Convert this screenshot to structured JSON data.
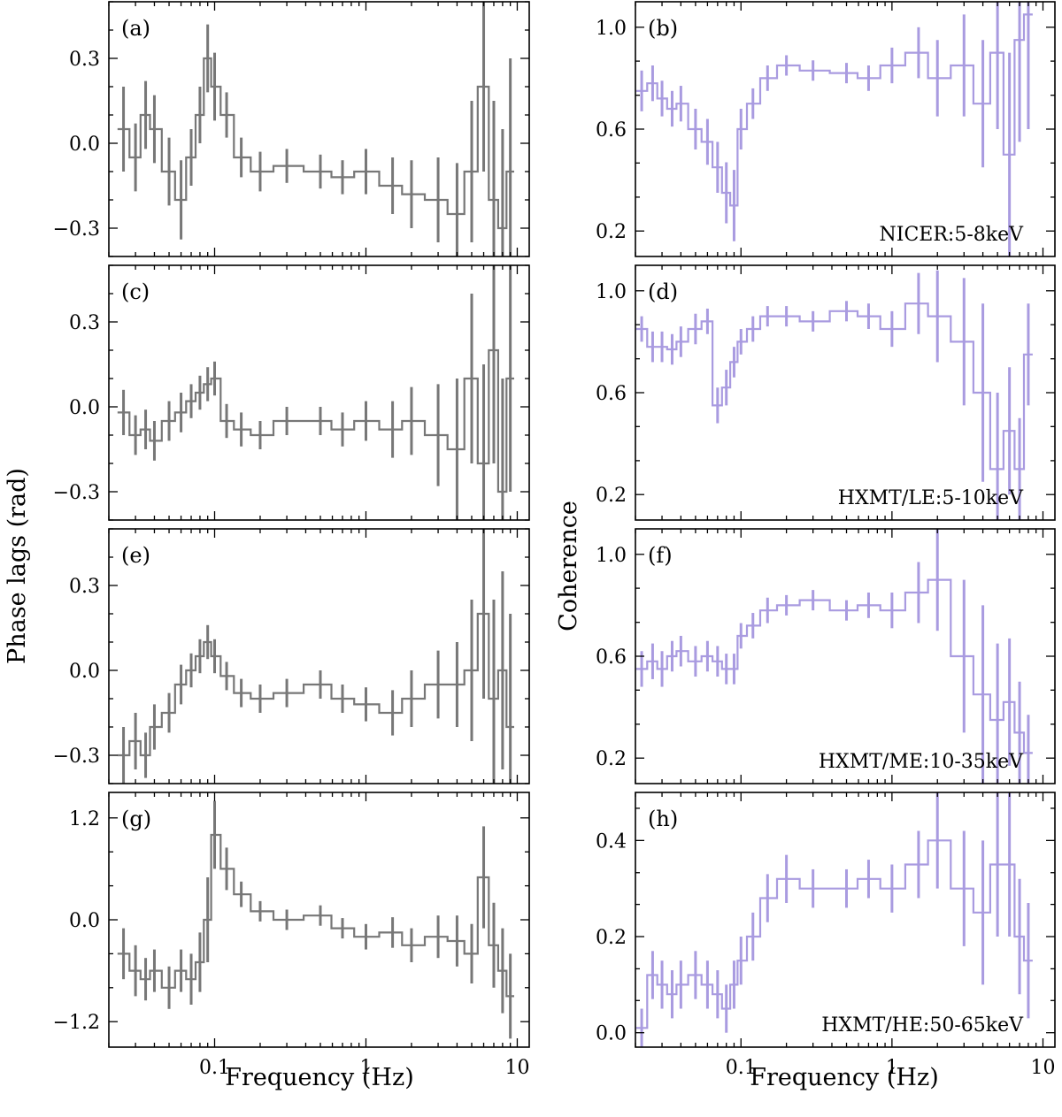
{
  "figure": {
    "left_ylabel": "Phase lags (rad)",
    "right_ylabel": "Coherence",
    "xlabel": "Frequency (Hz)",
    "x_tick_labels": [
      "0.1",
      "1",
      "10"
    ]
  },
  "colors": {
    "lag_series": "#777777",
    "coherence_series": "#a99be0",
    "axes": "#000000"
  },
  "chart_data": [
    {
      "type": "line",
      "panel": "(a)",
      "ylabel": "Phase lags (rad)",
      "xscale": "log",
      "xlim": [
        0.02,
        12
      ],
      "ylim": [
        -0.4,
        0.5
      ],
      "yticks": [
        -0.3,
        0.0,
        0.3
      ],
      "ytick_labels": [
        "−0.3",
        "0.0",
        "0.3"
      ],
      "x": [
        0.025,
        0.03,
        0.035,
        0.04,
        0.05,
        0.06,
        0.07,
        0.08,
        0.09,
        0.1,
        0.12,
        0.15,
        0.2,
        0.3,
        0.5,
        0.7,
        1.0,
        1.5,
        2.0,
        3.0,
        4.0,
        5.0,
        6.0,
        7.0,
        8.0,
        9.0
      ],
      "y": [
        0.05,
        -0.05,
        0.1,
        0.05,
        -0.1,
        -0.2,
        -0.05,
        0.1,
        0.3,
        0.2,
        0.1,
        -0.05,
        -0.1,
        -0.08,
        -0.1,
        -0.12,
        -0.1,
        -0.15,
        -0.18,
        -0.2,
        -0.25,
        -0.1,
        0.2,
        -0.2,
        -0.3,
        -0.1
      ],
      "yerr": [
        0.15,
        0.12,
        0.12,
        0.12,
        0.12,
        0.14,
        0.1,
        0.1,
        0.12,
        0.12,
        0.08,
        0.07,
        0.07,
        0.06,
        0.06,
        0.06,
        0.08,
        0.1,
        0.12,
        0.15,
        0.18,
        0.25,
        0.3,
        0.35,
        0.35,
        0.4
      ],
      "annotation": ""
    },
    {
      "type": "line",
      "panel": "(b)",
      "ylabel": "Coherence",
      "xscale": "log",
      "xlim": [
        0.02,
        12
      ],
      "ylim": [
        0.1,
        1.1
      ],
      "yticks": [
        0.2,
        0.6,
        1.0
      ],
      "ytick_labels": [
        "0.2",
        "0.6",
        "1.0"
      ],
      "x": [
        0.022,
        0.026,
        0.03,
        0.035,
        0.04,
        0.05,
        0.06,
        0.07,
        0.08,
        0.09,
        0.1,
        0.12,
        0.15,
        0.2,
        0.3,
        0.5,
        0.7,
        1.0,
        1.5,
        2.0,
        3.0,
        4.0,
        5.0,
        6.0,
        7.0,
        8.0
      ],
      "y": [
        0.75,
        0.78,
        0.72,
        0.68,
        0.7,
        0.6,
        0.55,
        0.45,
        0.35,
        0.3,
        0.6,
        0.7,
        0.8,
        0.85,
        0.83,
        0.82,
        0.8,
        0.85,
        0.9,
        0.8,
        0.85,
        0.7,
        0.9,
        0.5,
        0.95,
        1.05
      ],
      "yerr": [
        0.08,
        0.07,
        0.07,
        0.07,
        0.07,
        0.08,
        0.09,
        0.1,
        0.12,
        0.14,
        0.08,
        0.06,
        0.05,
        0.04,
        0.04,
        0.04,
        0.05,
        0.07,
        0.1,
        0.15,
        0.2,
        0.25,
        0.3,
        0.4,
        0.4,
        0.45
      ],
      "annotation": "NICER:5-8keV"
    },
    {
      "type": "line",
      "panel": "(c)",
      "ylabel": "Phase lags (rad)",
      "xscale": "log",
      "xlim": [
        0.02,
        12
      ],
      "ylim": [
        -0.4,
        0.5
      ],
      "yticks": [
        -0.3,
        0.0,
        0.3
      ],
      "ytick_labels": [
        "−0.3",
        "0.0",
        "0.3"
      ],
      "x": [
        0.025,
        0.03,
        0.035,
        0.04,
        0.05,
        0.06,
        0.07,
        0.08,
        0.09,
        0.1,
        0.12,
        0.15,
        0.2,
        0.3,
        0.5,
        0.7,
        1.0,
        1.5,
        2.0,
        3.0,
        4.0,
        5.0,
        6.0,
        7.0,
        8.0,
        9.0
      ],
      "y": [
        -0.02,
        -0.1,
        -0.08,
        -0.12,
        -0.05,
        -0.02,
        0.02,
        0.05,
        0.08,
        0.1,
        -0.05,
        -0.08,
        -0.1,
        -0.05,
        -0.05,
        -0.08,
        -0.05,
        -0.08,
        -0.05,
        -0.1,
        -0.15,
        0.1,
        -0.2,
        0.2,
        -0.3,
        0.1
      ],
      "yerr": [
        0.08,
        0.07,
        0.07,
        0.07,
        0.07,
        0.07,
        0.06,
        0.06,
        0.06,
        0.06,
        0.06,
        0.06,
        0.05,
        0.05,
        0.05,
        0.06,
        0.07,
        0.1,
        0.12,
        0.18,
        0.25,
        0.3,
        0.35,
        0.4,
        0.4,
        0.4
      ],
      "annotation": ""
    },
    {
      "type": "line",
      "panel": "(d)",
      "ylabel": "Coherence",
      "xscale": "log",
      "xlim": [
        0.02,
        12
      ],
      "ylim": [
        0.1,
        1.1
      ],
      "yticks": [
        0.2,
        0.6,
        1.0
      ],
      "ytick_labels": [
        "0.2",
        "0.6",
        "1.0"
      ],
      "x": [
        0.022,
        0.026,
        0.03,
        0.035,
        0.04,
        0.05,
        0.06,
        0.07,
        0.08,
        0.09,
        0.1,
        0.12,
        0.15,
        0.2,
        0.3,
        0.5,
        0.7,
        1.0,
        1.5,
        2.0,
        3.0,
        4.0,
        5.0,
        6.0,
        7.0,
        8.0
      ],
      "y": [
        0.85,
        0.78,
        0.78,
        0.77,
        0.8,
        0.85,
        0.88,
        0.55,
        0.62,
        0.72,
        0.8,
        0.85,
        0.9,
        0.9,
        0.88,
        0.92,
        0.9,
        0.85,
        0.95,
        0.9,
        0.8,
        0.6,
        0.3,
        0.45,
        0.3,
        0.75
      ],
      "yerr": [
        0.05,
        0.06,
        0.06,
        0.06,
        0.06,
        0.06,
        0.05,
        0.07,
        0.07,
        0.06,
        0.05,
        0.05,
        0.04,
        0.04,
        0.04,
        0.04,
        0.05,
        0.07,
        0.12,
        0.18,
        0.25,
        0.35,
        0.3,
        0.25,
        0.2,
        0.2
      ],
      "annotation": "HXMT/LE:5-10keV"
    },
    {
      "type": "line",
      "panel": "(e)",
      "ylabel": "Phase lags (rad)",
      "xscale": "log",
      "xlim": [
        0.02,
        12
      ],
      "ylim": [
        -0.4,
        0.5
      ],
      "yticks": [
        -0.3,
        0.0,
        0.3
      ],
      "ytick_labels": [
        "−0.3",
        "0.0",
        "0.3"
      ],
      "x": [
        0.025,
        0.03,
        0.035,
        0.04,
        0.05,
        0.06,
        0.07,
        0.08,
        0.09,
        0.1,
        0.12,
        0.15,
        0.2,
        0.3,
        0.5,
        0.7,
        1.0,
        1.5,
        2.0,
        3.0,
        4.0,
        5.0,
        6.0,
        7.0,
        8.0,
        9.0
      ],
      "y": [
        -0.3,
        -0.25,
        -0.3,
        -0.2,
        -0.15,
        -0.05,
        0.0,
        0.05,
        0.1,
        0.05,
        -0.02,
        -0.08,
        -0.1,
        -0.08,
        -0.05,
        -0.1,
        -0.12,
        -0.15,
        -0.1,
        -0.05,
        -0.05,
        0.0,
        0.2,
        -0.1,
        0.0,
        -0.2
      ],
      "yerr": [
        0.1,
        0.1,
        0.08,
        0.08,
        0.07,
        0.07,
        0.06,
        0.06,
        0.06,
        0.06,
        0.05,
        0.05,
        0.05,
        0.05,
        0.05,
        0.05,
        0.06,
        0.08,
        0.1,
        0.12,
        0.15,
        0.25,
        0.3,
        0.35,
        0.35,
        0.4
      ],
      "annotation": ""
    },
    {
      "type": "line",
      "panel": "(f)",
      "ylabel": "Coherence",
      "xscale": "log",
      "xlim": [
        0.02,
        12
      ],
      "ylim": [
        0.1,
        1.1
      ],
      "yticks": [
        0.2,
        0.6,
        1.0
      ],
      "ytick_labels": [
        "0.2",
        "0.6",
        "1.0"
      ],
      "x": [
        0.022,
        0.026,
        0.03,
        0.035,
        0.04,
        0.05,
        0.06,
        0.07,
        0.08,
        0.09,
        0.1,
        0.12,
        0.15,
        0.2,
        0.3,
        0.5,
        0.7,
        1.0,
        1.5,
        2.0,
        3.0,
        4.0,
        5.0,
        6.0,
        7.0,
        8.0
      ],
      "y": [
        0.55,
        0.58,
        0.55,
        0.6,
        0.62,
        0.58,
        0.6,
        0.58,
        0.55,
        0.55,
        0.68,
        0.72,
        0.78,
        0.8,
        0.82,
        0.78,
        0.8,
        0.78,
        0.85,
        0.9,
        0.6,
        0.45,
        0.35,
        0.42,
        0.3,
        0.22
      ],
      "yerr": [
        0.07,
        0.07,
        0.07,
        0.06,
        0.06,
        0.06,
        0.06,
        0.06,
        0.06,
        0.06,
        0.05,
        0.05,
        0.05,
        0.04,
        0.04,
        0.04,
        0.05,
        0.07,
        0.12,
        0.2,
        0.3,
        0.35,
        0.3,
        0.25,
        0.2,
        0.15
      ],
      "annotation": "HXMT/ME:10-35keV"
    },
    {
      "type": "line",
      "panel": "(g)",
      "ylabel": "Phase lags (rad)",
      "xscale": "log",
      "xlim": [
        0.02,
        12
      ],
      "ylim": [
        -1.5,
        1.5
      ],
      "yticks": [
        -1.2,
        0.0,
        1.2
      ],
      "ytick_labels": [
        "−1.2",
        "0.0",
        "1.2"
      ],
      "x": [
        0.025,
        0.03,
        0.035,
        0.04,
        0.05,
        0.06,
        0.07,
        0.08,
        0.09,
        0.1,
        0.12,
        0.15,
        0.2,
        0.3,
        0.5,
        0.7,
        1.0,
        1.5,
        2.0,
        3.0,
        4.0,
        5.0,
        6.0,
        7.0,
        8.0,
        9.0
      ],
      "y": [
        -0.4,
        -0.6,
        -0.7,
        -0.6,
        -0.8,
        -0.6,
        -0.7,
        -0.5,
        0.0,
        1.0,
        0.6,
        0.3,
        0.1,
        0.0,
        0.05,
        -0.1,
        -0.2,
        -0.15,
        -0.3,
        -0.2,
        -0.25,
        -0.4,
        0.5,
        -0.3,
        -0.6,
        -0.9
      ],
      "yerr": [
        0.3,
        0.3,
        0.25,
        0.25,
        0.25,
        0.25,
        0.3,
        0.35,
        0.5,
        0.4,
        0.25,
        0.15,
        0.12,
        0.12,
        0.12,
        0.12,
        0.15,
        0.18,
        0.2,
        0.25,
        0.3,
        0.35,
        0.6,
        0.5,
        0.5,
        0.5
      ],
      "annotation": ""
    },
    {
      "type": "line",
      "panel": "(h)",
      "ylabel": "Coherence",
      "xscale": "log",
      "xlim": [
        0.02,
        12
      ],
      "ylim": [
        -0.03,
        0.5
      ],
      "yticks": [
        0.0,
        0.2,
        0.4
      ],
      "ytick_labels": [
        "0.0",
        "0.2",
        "0.4"
      ],
      "x": [
        0.022,
        0.026,
        0.03,
        0.035,
        0.04,
        0.05,
        0.06,
        0.07,
        0.08,
        0.09,
        0.1,
        0.12,
        0.15,
        0.2,
        0.3,
        0.5,
        0.7,
        1.0,
        1.5,
        2.0,
        3.0,
        4.0,
        5.0,
        6.0,
        7.0,
        8.0
      ],
      "y": [
        0.01,
        0.12,
        0.1,
        0.08,
        0.1,
        0.12,
        0.1,
        0.08,
        0.05,
        0.1,
        0.15,
        0.2,
        0.28,
        0.32,
        0.3,
        0.3,
        0.32,
        0.3,
        0.35,
        0.4,
        0.3,
        0.25,
        0.35,
        0.35,
        0.2,
        0.15
      ],
      "yerr": [
        0.04,
        0.05,
        0.05,
        0.05,
        0.05,
        0.05,
        0.05,
        0.05,
        0.05,
        0.05,
        0.05,
        0.05,
        0.05,
        0.05,
        0.04,
        0.04,
        0.04,
        0.05,
        0.07,
        0.1,
        0.12,
        0.15,
        0.15,
        0.15,
        0.12,
        0.12
      ],
      "annotation": "HXMT/HE:50-65keV"
    }
  ]
}
